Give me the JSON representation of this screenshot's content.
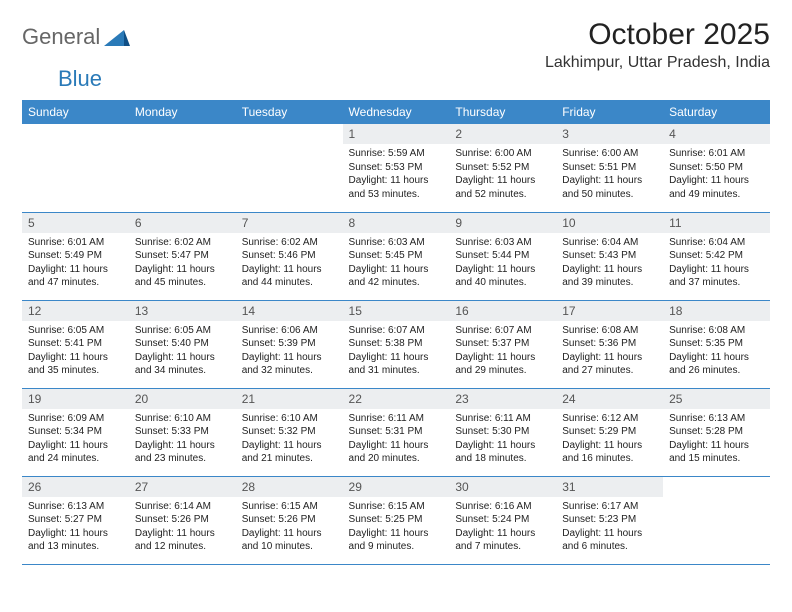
{
  "brand": {
    "part1": "General",
    "part2": "Blue"
  },
  "title": "October 2025",
  "location": "Lakhimpur, Uttar Pradesh, India",
  "colors": {
    "header_bg": "#3b87c8",
    "header_fg": "#ffffff",
    "daynum_bg": "#eceef0",
    "row_border": "#3b87c8",
    "brand_gray": "#666666",
    "brand_blue": "#2a7ab8"
  },
  "weekdays": [
    "Sunday",
    "Monday",
    "Tuesday",
    "Wednesday",
    "Thursday",
    "Friday",
    "Saturday"
  ],
  "weeks": [
    [
      {
        "empty": true
      },
      {
        "empty": true
      },
      {
        "empty": true
      },
      {
        "n": "1",
        "sr": "5:59 AM",
        "ss": "5:53 PM",
        "dl": "11 hours and 53 minutes."
      },
      {
        "n": "2",
        "sr": "6:00 AM",
        "ss": "5:52 PM",
        "dl": "11 hours and 52 minutes."
      },
      {
        "n": "3",
        "sr": "6:00 AM",
        "ss": "5:51 PM",
        "dl": "11 hours and 50 minutes."
      },
      {
        "n": "4",
        "sr": "6:01 AM",
        "ss": "5:50 PM",
        "dl": "11 hours and 49 minutes."
      }
    ],
    [
      {
        "n": "5",
        "sr": "6:01 AM",
        "ss": "5:49 PM",
        "dl": "11 hours and 47 minutes."
      },
      {
        "n": "6",
        "sr": "6:02 AM",
        "ss": "5:47 PM",
        "dl": "11 hours and 45 minutes."
      },
      {
        "n": "7",
        "sr": "6:02 AM",
        "ss": "5:46 PM",
        "dl": "11 hours and 44 minutes."
      },
      {
        "n": "8",
        "sr": "6:03 AM",
        "ss": "5:45 PM",
        "dl": "11 hours and 42 minutes."
      },
      {
        "n": "9",
        "sr": "6:03 AM",
        "ss": "5:44 PM",
        "dl": "11 hours and 40 minutes."
      },
      {
        "n": "10",
        "sr": "6:04 AM",
        "ss": "5:43 PM",
        "dl": "11 hours and 39 minutes."
      },
      {
        "n": "11",
        "sr": "6:04 AM",
        "ss": "5:42 PM",
        "dl": "11 hours and 37 minutes."
      }
    ],
    [
      {
        "n": "12",
        "sr": "6:05 AM",
        "ss": "5:41 PM",
        "dl": "11 hours and 35 minutes."
      },
      {
        "n": "13",
        "sr": "6:05 AM",
        "ss": "5:40 PM",
        "dl": "11 hours and 34 minutes."
      },
      {
        "n": "14",
        "sr": "6:06 AM",
        "ss": "5:39 PM",
        "dl": "11 hours and 32 minutes."
      },
      {
        "n": "15",
        "sr": "6:07 AM",
        "ss": "5:38 PM",
        "dl": "11 hours and 31 minutes."
      },
      {
        "n": "16",
        "sr": "6:07 AM",
        "ss": "5:37 PM",
        "dl": "11 hours and 29 minutes."
      },
      {
        "n": "17",
        "sr": "6:08 AM",
        "ss": "5:36 PM",
        "dl": "11 hours and 27 minutes."
      },
      {
        "n": "18",
        "sr": "6:08 AM",
        "ss": "5:35 PM",
        "dl": "11 hours and 26 minutes."
      }
    ],
    [
      {
        "n": "19",
        "sr": "6:09 AM",
        "ss": "5:34 PM",
        "dl": "11 hours and 24 minutes."
      },
      {
        "n": "20",
        "sr": "6:10 AM",
        "ss": "5:33 PM",
        "dl": "11 hours and 23 minutes."
      },
      {
        "n": "21",
        "sr": "6:10 AM",
        "ss": "5:32 PM",
        "dl": "11 hours and 21 minutes."
      },
      {
        "n": "22",
        "sr": "6:11 AM",
        "ss": "5:31 PM",
        "dl": "11 hours and 20 minutes."
      },
      {
        "n": "23",
        "sr": "6:11 AM",
        "ss": "5:30 PM",
        "dl": "11 hours and 18 minutes."
      },
      {
        "n": "24",
        "sr": "6:12 AM",
        "ss": "5:29 PM",
        "dl": "11 hours and 16 minutes."
      },
      {
        "n": "25",
        "sr": "6:13 AM",
        "ss": "5:28 PM",
        "dl": "11 hours and 15 minutes."
      }
    ],
    [
      {
        "n": "26",
        "sr": "6:13 AM",
        "ss": "5:27 PM",
        "dl": "11 hours and 13 minutes."
      },
      {
        "n": "27",
        "sr": "6:14 AM",
        "ss": "5:26 PM",
        "dl": "11 hours and 12 minutes."
      },
      {
        "n": "28",
        "sr": "6:15 AM",
        "ss": "5:26 PM",
        "dl": "11 hours and 10 minutes."
      },
      {
        "n": "29",
        "sr": "6:15 AM",
        "ss": "5:25 PM",
        "dl": "11 hours and 9 minutes."
      },
      {
        "n": "30",
        "sr": "6:16 AM",
        "ss": "5:24 PM",
        "dl": "11 hours and 7 minutes."
      },
      {
        "n": "31",
        "sr": "6:17 AM",
        "ss": "5:23 PM",
        "dl": "11 hours and 6 minutes."
      },
      {
        "empty": true
      }
    ]
  ],
  "labels": {
    "sunrise": "Sunrise:",
    "sunset": "Sunset:",
    "daylight": "Daylight:"
  }
}
